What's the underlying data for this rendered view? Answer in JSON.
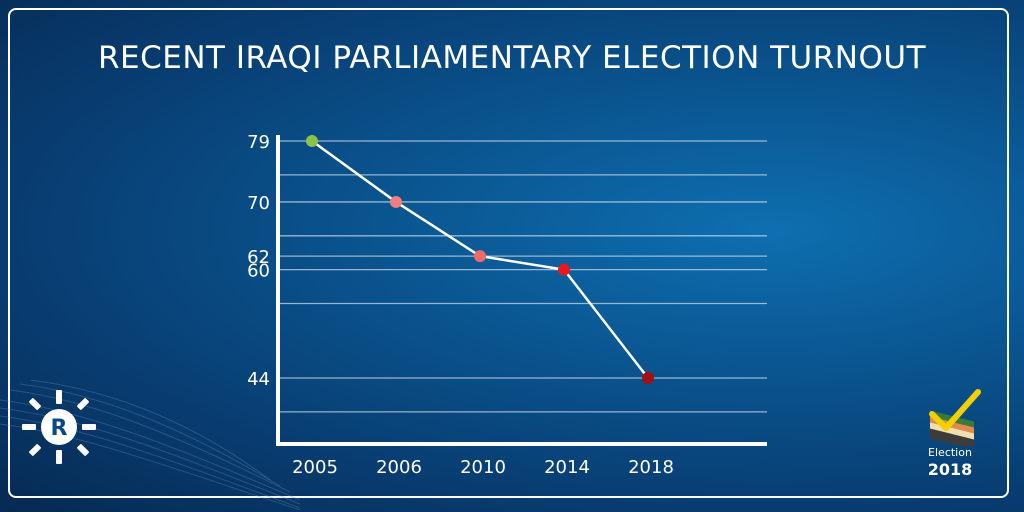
{
  "title": "RECENT IRAQI PARLIAMENTARY ELECTION TURNOUT",
  "chart_data": {
    "type": "line",
    "title": "RECENT IRAQI PARLIAMENTARY ELECTION TURNOUT",
    "xlabel": "",
    "ylabel": "",
    "categories": [
      "2005",
      "2006",
      "2010",
      "2014",
      "2018"
    ],
    "values": [
      79,
      70,
      62,
      60,
      44
    ],
    "ytick_labels": [
      "79",
      "70",
      "62",
      "60",
      "44"
    ],
    "ylim": [
      35,
      80
    ],
    "grid": true,
    "line_color": "#ffffff",
    "point_colors": [
      "#8bc34a",
      "#f08080",
      "#f06a6a",
      "#e8191f",
      "#a50f0f"
    ]
  },
  "badge": {
    "word": "Election",
    "year": "2018",
    "icon": "checkmark-ballot-icon"
  },
  "logo": {
    "letter": "R",
    "icon": "rudaw-logo-icon"
  }
}
